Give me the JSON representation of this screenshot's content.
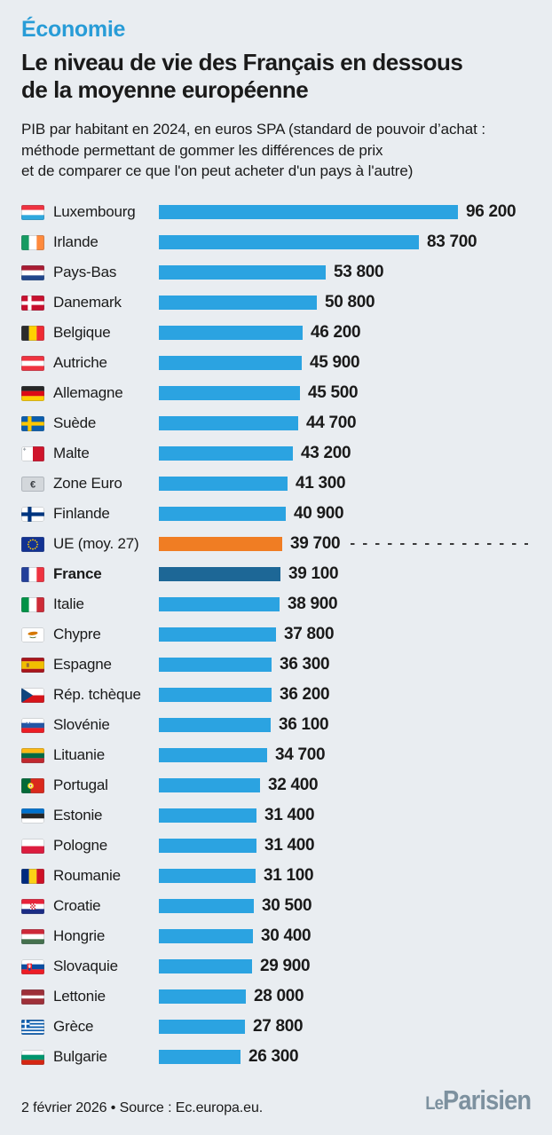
{
  "header": {
    "kicker": "Économie",
    "kicker_color": "#289CD7",
    "title_line1": "Le niveau de vie des Français en dessous",
    "title_line2": "de la moyenne européenne",
    "subtitle_line1": "PIB par habitant en 2024, en euros SPA (standard de pouvoir d’achat :",
    "subtitle_line2": "méthode permettant de gommer les différences de prix",
    "subtitle_line3": "et de comparer ce que l'on peut acheter d'un pays à l'autre)"
  },
  "chart_data": {
    "type": "bar",
    "orientation": "horizontal",
    "title": "PIB par habitant en 2024, en euros SPA",
    "xlabel": "",
    "ylabel": "",
    "xlim": [
      0,
      96200
    ],
    "grid": false,
    "legend": "none",
    "bar_colors": {
      "default": "#2BA3E1",
      "eu_average": "#F07D23",
      "france": "#1D6796"
    },
    "annotations": [
      {
        "type": "dashed-line",
        "at_row": "UE (moy. 27)",
        "color": "#3A3A3A"
      }
    ],
    "categories": [
      "Luxembourg",
      "Irlande",
      "Pays-Bas",
      "Danemark",
      "Belgique",
      "Autriche",
      "Allemagne",
      "Suède",
      "Malte",
      "Zone Euro",
      "Finlande",
      "UE (moy. 27)",
      "France",
      "Italie",
      "Chypre",
      "Espagne",
      "Rép. tchèque",
      "Slovénie",
      "Lituanie",
      "Portugal",
      "Estonie",
      "Pologne",
      "Roumanie",
      "Croatie",
      "Hongrie",
      "Slovaquie",
      "Lettonie",
      "Grèce",
      "Bulgarie"
    ],
    "values": [
      96200,
      83700,
      53800,
      50800,
      46200,
      45900,
      45500,
      44700,
      43200,
      41300,
      40900,
      39700,
      39100,
      38900,
      37800,
      36300,
      36200,
      36100,
      34700,
      32400,
      31400,
      31400,
      31100,
      30500,
      30400,
      29900,
      28000,
      27800,
      26300
    ],
    "rows": [
      {
        "label": "Luxembourg",
        "flag": "luxembourg",
        "value": 96200,
        "value_label": "96 200",
        "style": "default"
      },
      {
        "label": "Irlande",
        "flag": "ireland",
        "value": 83700,
        "value_label": "83 700",
        "style": "default"
      },
      {
        "label": "Pays-Bas",
        "flag": "netherlands",
        "value": 53800,
        "value_label": "53 800",
        "style": "default"
      },
      {
        "label": "Danemark",
        "flag": "denmark",
        "value": 50800,
        "value_label": "50 800",
        "style": "default"
      },
      {
        "label": "Belgique",
        "flag": "belgium",
        "value": 46200,
        "value_label": "46 200",
        "style": "default"
      },
      {
        "label": "Autriche",
        "flag": "austria",
        "value": 45900,
        "value_label": "45 900",
        "style": "default"
      },
      {
        "label": "Allemagne",
        "flag": "germany",
        "value": 45500,
        "value_label": "45 500",
        "style": "default"
      },
      {
        "label": "Suède",
        "flag": "sweden",
        "value": 44700,
        "value_label": "44 700",
        "style": "default"
      },
      {
        "label": "Malte",
        "flag": "malta",
        "value": 43200,
        "value_label": "43 200",
        "style": "default"
      },
      {
        "label": "Zone Euro",
        "flag": "eurozone",
        "value": 41300,
        "value_label": "41 300",
        "style": "default"
      },
      {
        "label": "Finlande",
        "flag": "finland",
        "value": 40900,
        "value_label": "40 900",
        "style": "default"
      },
      {
        "label": "UE (moy. 27)",
        "flag": "eu",
        "value": 39700,
        "value_label": "39 700",
        "style": "eu_average",
        "dashed": true
      },
      {
        "label": "France",
        "flag": "france",
        "value": 39100,
        "value_label": "39 100",
        "style": "france",
        "bold": true
      },
      {
        "label": "Italie",
        "flag": "italy",
        "value": 38900,
        "value_label": "38 900",
        "style": "default"
      },
      {
        "label": "Chypre",
        "flag": "cyprus",
        "value": 37800,
        "value_label": "37 800",
        "style": "default"
      },
      {
        "label": "Espagne",
        "flag": "spain",
        "value": 36300,
        "value_label": "36 300",
        "style": "default"
      },
      {
        "label": "Rép. tchèque",
        "flag": "czechia",
        "value": 36200,
        "value_label": "36 200",
        "style": "default"
      },
      {
        "label": "Slovénie",
        "flag": "slovenia",
        "value": 36100,
        "value_label": "36 100",
        "style": "default"
      },
      {
        "label": "Lituanie",
        "flag": "lithuania",
        "value": 34700,
        "value_label": "34 700",
        "style": "default"
      },
      {
        "label": "Portugal",
        "flag": "portugal",
        "value": 32400,
        "value_label": "32 400",
        "style": "default"
      },
      {
        "label": "Estonie",
        "flag": "estonia",
        "value": 31400,
        "value_label": "31 400",
        "style": "default"
      },
      {
        "label": "Pologne",
        "flag": "poland",
        "value": 31400,
        "value_label": "31 400",
        "style": "default"
      },
      {
        "label": "Roumanie",
        "flag": "romania",
        "value": 31100,
        "value_label": "31 100",
        "style": "default"
      },
      {
        "label": "Croatie",
        "flag": "croatia",
        "value": 30500,
        "value_label": "30 500",
        "style": "default"
      },
      {
        "label": "Hongrie",
        "flag": "hungary",
        "value": 30400,
        "value_label": "30 400",
        "style": "default"
      },
      {
        "label": "Slovaquie",
        "flag": "slovakia",
        "value": 29900,
        "value_label": "29 900",
        "style": "default"
      },
      {
        "label": "Lettonie",
        "flag": "latvia",
        "value": 28000,
        "value_label": "28 000",
        "style": "default"
      },
      {
        "label": "Grèce",
        "flag": "greece",
        "value": 27800,
        "value_label": "27 800",
        "style": "default"
      },
      {
        "label": "Bulgarie",
        "flag": "bulgaria",
        "value": 26300,
        "value_label": "26 300",
        "style": "default"
      }
    ]
  },
  "footer": {
    "date_source": "2 février 2026 • Source : Ec.europa.eu.",
    "logo_le": "Le",
    "logo_parisien": "Parisien",
    "logo_color": "#7D919F"
  }
}
